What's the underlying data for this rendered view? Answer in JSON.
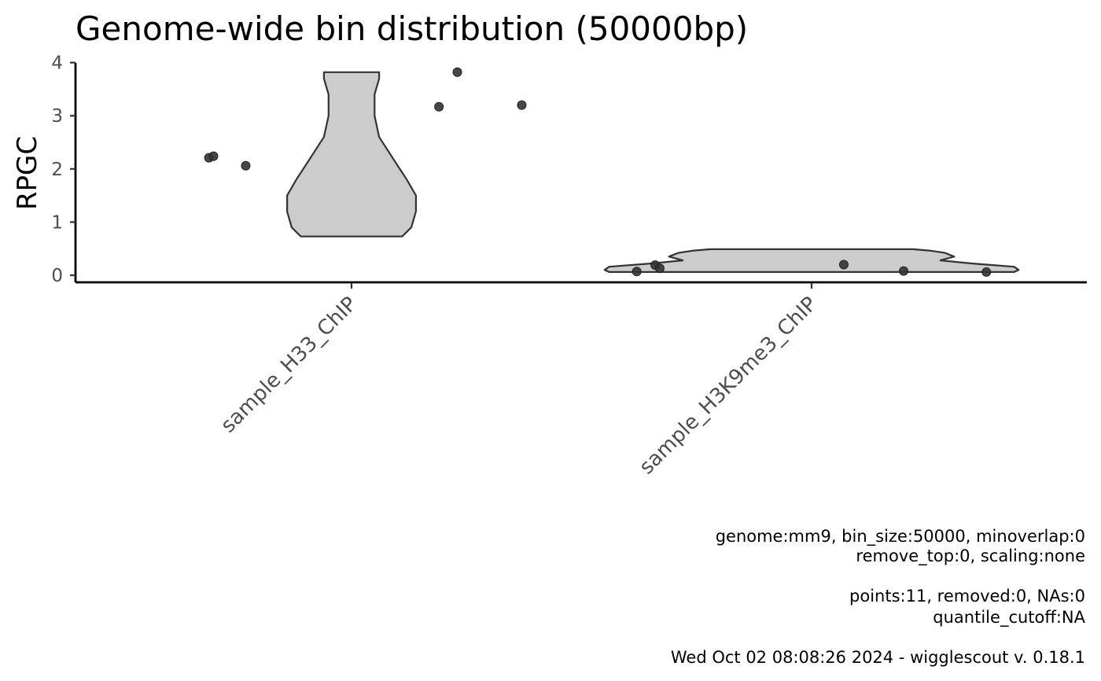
{
  "chart_data": {
    "type": "violin",
    "title": "Genome-wide bin distribution (50000bp)",
    "xlabel": "",
    "ylabel": "RPGC",
    "ylim": [
      -0.1,
      4.0
    ],
    "yticks": [
      0,
      1,
      2,
      3,
      4
    ],
    "categories": [
      "sample_H33_ChIP",
      "sample_H3K9me3_ChIP"
    ],
    "violins": [
      {
        "category": "sample_H33_ChIP",
        "min": 0.73,
        "max": 3.82,
        "profile": [
          {
            "y": 0.73,
            "w": 0.11
          },
          {
            "y": 0.9,
            "w": 0.13
          },
          {
            "y": 1.2,
            "w": 0.14
          },
          {
            "y": 1.5,
            "w": 0.14
          },
          {
            "y": 1.8,
            "w": 0.12
          },
          {
            "y": 2.2,
            "w": 0.09
          },
          {
            "y": 2.6,
            "w": 0.06
          },
          {
            "y": 3.0,
            "w": 0.05
          },
          {
            "y": 3.4,
            "w": 0.05
          },
          {
            "y": 3.7,
            "w": 0.06
          },
          {
            "y": 3.82,
            "w": 0.06
          }
        ]
      },
      {
        "category": "sample_H3K9me3_ChIP",
        "min": 0.06,
        "max": 0.49,
        "profile": [
          {
            "y": 0.06,
            "w": 0.44
          },
          {
            "y": 0.1,
            "w": 0.45
          },
          {
            "y": 0.16,
            "w": 0.44
          },
          {
            "y": 0.22,
            "w": 0.35
          },
          {
            "y": 0.28,
            "w": 0.28
          },
          {
            "y": 0.35,
            "w": 0.31
          },
          {
            "y": 0.42,
            "w": 0.29
          },
          {
            "y": 0.46,
            "w": 0.26
          },
          {
            "y": 0.49,
            "w": 0.22
          }
        ]
      }
    ],
    "points": [
      {
        "x": 0.69,
        "y": 2.21
      },
      {
        "x": 0.7,
        "y": 2.24
      },
      {
        "x": 0.77,
        "y": 2.06
      },
      {
        "x": 1.19,
        "y": 3.17
      },
      {
        "x": 1.23,
        "y": 3.82
      },
      {
        "x": 1.37,
        "y": 3.2
      },
      {
        "x": 1.62,
        "y": 0.07
      },
      {
        "x": 1.66,
        "y": 0.19
      },
      {
        "x": 1.67,
        "y": 0.13
      },
      {
        "x": 2.07,
        "y": 0.2
      },
      {
        "x": 2.2,
        "y": 0.08
      },
      {
        "x": 2.38,
        "y": 0.06
      }
    ],
    "grid": false,
    "legend": "none"
  },
  "caption": {
    "line1": "genome:mm9, bin_size:50000, minoverlap:0",
    "line2": "remove_top:0, scaling:none",
    "line3": "points:11, removed:0, NAs:0",
    "line4": "quantile_cutoff:NA",
    "line5": "Wed Oct 02 08:08:26 2024 - wigglescout v. 0.18.1"
  }
}
